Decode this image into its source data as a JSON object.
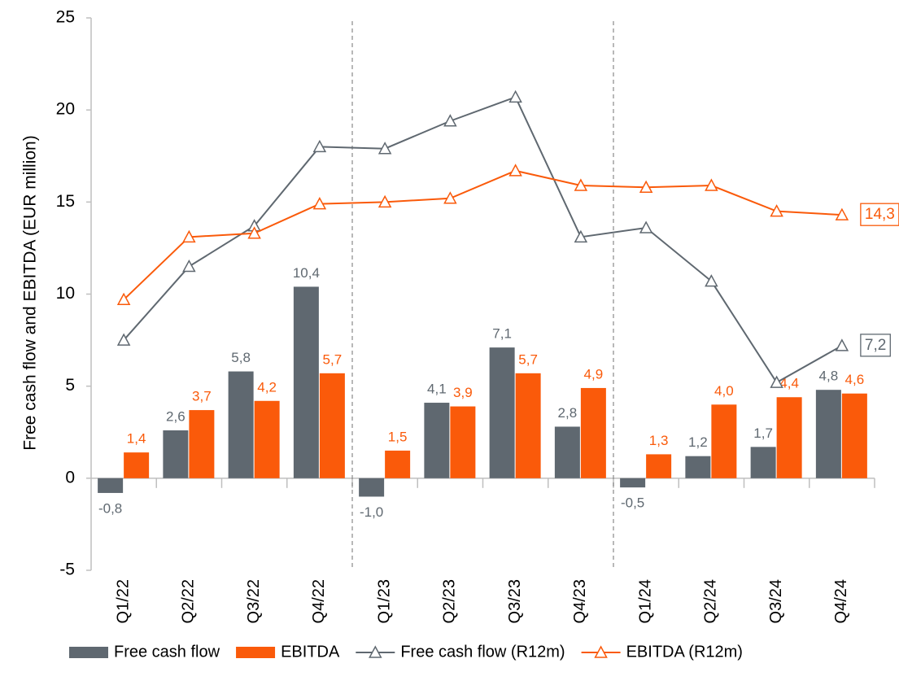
{
  "chart_data": {
    "type": "bar_line",
    "y_label": "Free cash flow and EBITDA (EUR million)",
    "categories": [
      "Q1/22",
      "Q2/22",
      "Q3/22",
      "Q4/22",
      "Q1/23",
      "Q2/23",
      "Q3/23",
      "Q4/23",
      "Q1/24",
      "Q2/24",
      "Q3/24",
      "Q4/24"
    ],
    "ylim": [
      -5,
      25
    ],
    "yticks": [
      -5,
      0,
      5,
      10,
      15,
      20,
      25
    ],
    "grid": false,
    "series": [
      {
        "name": "Free cash flow",
        "kind": "bar",
        "color": "#5f6870",
        "values": [
          -0.8,
          2.6,
          5.8,
          10.4,
          -1.0,
          4.1,
          7.1,
          2.8,
          -0.5,
          1.2,
          1.7,
          4.8
        ],
        "value_labels": [
          "-0,8",
          "2,6",
          "5,8",
          "10,4",
          "-1,0",
          "4,1",
          "7,1",
          "2,8",
          "-0,5",
          "1,2",
          "1,7",
          "4,8"
        ]
      },
      {
        "name": "EBITDA",
        "kind": "bar",
        "color": "#fa5a0a",
        "values": [
          1.4,
          3.7,
          4.2,
          5.7,
          1.5,
          3.9,
          5.7,
          4.9,
          1.3,
          4.0,
          4.4,
          4.6
        ],
        "value_labels": [
          "1,4",
          "3,7",
          "4,2",
          "5,7",
          "1,5",
          "3,9",
          "5,7",
          "4,9",
          "1,3",
          "4,0",
          "4,4",
          "4,6"
        ]
      },
      {
        "name": "Free cash flow (R12m)",
        "kind": "line",
        "color": "#5f6870",
        "values": [
          7.5,
          11.5,
          13.7,
          18.0,
          17.9,
          19.4,
          20.7,
          13.1,
          13.6,
          10.7,
          5.2,
          7.2
        ],
        "last_label": "7,2"
      },
      {
        "name": "EBITDA (R12m)",
        "kind": "line",
        "color": "#fa5a0a",
        "values": [
          9.7,
          13.1,
          13.3,
          14.9,
          15.0,
          15.2,
          16.7,
          15.9,
          15.8,
          15.9,
          14.5,
          14.3
        ],
        "last_label": "14,3"
      }
    ]
  }
}
